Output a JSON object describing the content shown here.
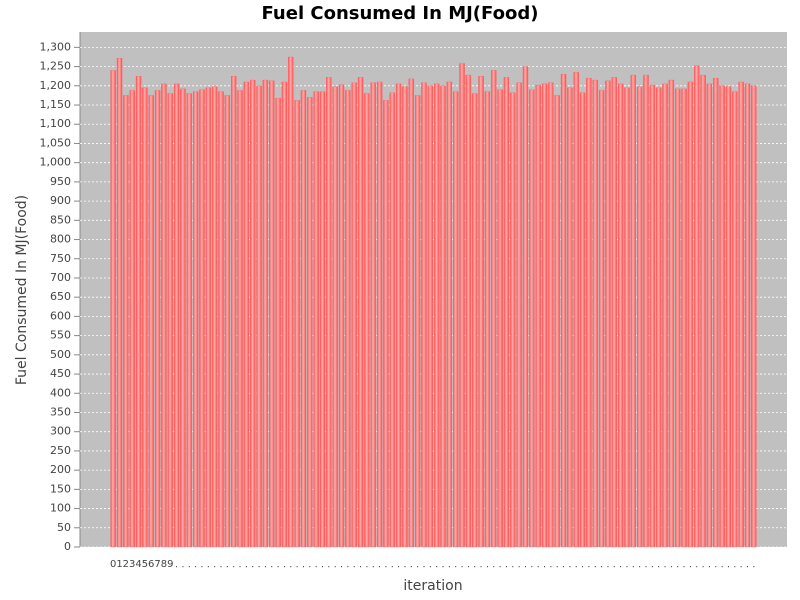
{
  "chart_data": {
    "type": "bar",
    "title": "Fuel Consumed In MJ(Food)",
    "x_label": "iteration",
    "y_label": "Fuel Consumed In MJ(Food)",
    "categories": [
      "0",
      "1",
      "2",
      "3",
      "4",
      "5",
      "6",
      "7",
      "8",
      "9",
      null,
      null,
      null,
      null,
      null,
      null,
      null,
      null,
      null,
      null,
      null,
      null,
      null,
      null,
      null,
      null,
      null,
      null,
      null,
      null,
      null,
      null,
      null,
      null,
      null,
      null,
      null,
      null,
      null,
      null,
      null,
      null,
      null,
      null,
      null,
      null,
      null,
      null,
      null,
      null,
      null,
      null,
      null,
      null,
      null,
      null,
      null,
      null,
      null,
      null,
      null,
      null,
      null,
      null,
      null,
      null,
      null,
      null,
      null,
      null,
      null,
      null,
      null,
      null,
      null,
      null,
      null,
      null,
      null,
      null,
      null,
      null,
      null,
      null,
      null,
      null,
      null,
      null,
      null,
      null,
      null,
      null,
      null,
      null,
      null,
      null,
      null,
      null,
      null,
      null,
      null,
      null
    ],
    "values": [
      1240,
      1272,
      1175,
      1188,
      1225,
      1195,
      1175,
      1188,
      1205,
      1180,
      1205,
      1192,
      1180,
      1185,
      1190,
      1195,
      1198,
      1185,
      1175,
      1225,
      1188,
      1210,
      1215,
      1200,
      1215,
      1213,
      1168,
      1210,
      1275,
      1162,
      1188,
      1170,
      1185,
      1185,
      1222,
      1198,
      1203,
      1188,
      1208,
      1222,
      1180,
      1208,
      1210,
      1162,
      1182,
      1205,
      1198,
      1218,
      1175,
      1208,
      1200,
      1205,
      1200,
      1210,
      1185,
      1258,
      1228,
      1180,
      1225,
      1185,
      1240,
      1190,
      1222,
      1182,
      1208,
      1250,
      1190,
      1202,
      1205,
      1208,
      1175,
      1230,
      1195,
      1235,
      1182,
      1220,
      1215,
      1188,
      1213,
      1222,
      1205,
      1195,
      1228,
      1198,
      1228,
      1202,
      1195,
      1205,
      1215,
      1192,
      1192,
      1210,
      1252,
      1228,
      1205,
      1220,
      1200,
      1198,
      1185,
      1210,
      1205,
      1200
    ],
    "color": "#ff5a5a",
    "ylim": [
      0,
      1340
    ],
    "yticks": [
      0,
      50,
      100,
      150,
      200,
      250,
      300,
      350,
      400,
      450,
      500,
      550,
      600,
      650,
      700,
      750,
      800,
      850,
      900,
      950,
      {
        "value": 1000,
        "label": "1,000"
      },
      {
        "value": 1050,
        "label": "1,050"
      },
      {
        "value": 1100,
        "label": "1,100"
      },
      {
        "value": 1150,
        "label": "1,150"
      },
      {
        "value": 1200,
        "label": "1,200"
      },
      {
        "value": 1250,
        "label": "1,250"
      },
      {
        "value": 1300,
        "label": "1,300"
      }
    ],
    "grid": true
  }
}
